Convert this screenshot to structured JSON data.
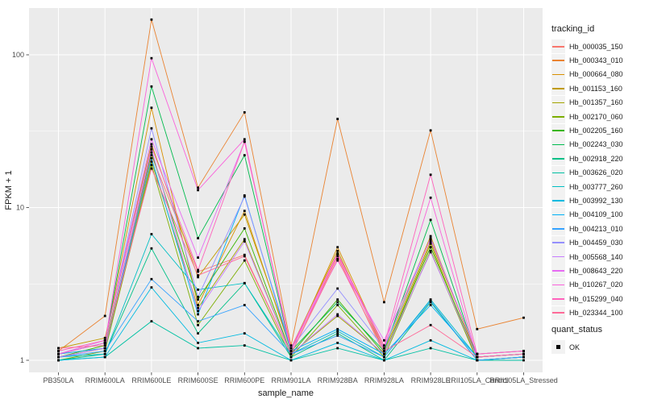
{
  "chart_data": {
    "type": "line",
    "title": "",
    "xlabel": "sample_name",
    "ylabel": "FPKM + 1",
    "yscale": "log10",
    "yticks": [
      "1",
      "10",
      "100"
    ],
    "ytick_values": [
      1,
      10,
      100
    ],
    "yminor_values": [
      3.162,
      31.62
    ],
    "ylim": [
      0.83,
      205
    ],
    "grid": "major-and-minor",
    "legend_position": "right",
    "point_shape": "small-black-square",
    "categories": [
      "PB350LA",
      "RRIM600LA",
      "RRIM600LE",
      "RRIM600SE",
      "RRIM600PE",
      "RRIM901LA",
      "RRIM928BA",
      "RRIM928LA",
      "RRIM928LE",
      "RRII105LA_Control",
      "RRII105LA_Stressed"
    ],
    "series": [
      {
        "name": "Hb_000035_150",
        "color": "#F8766D",
        "values": [
          1.1,
          1.2,
          22,
          3.8,
          4.9,
          1.1,
          4.8,
          1.1,
          5.5,
          1.05,
          1.1
        ]
      },
      {
        "name": "Hb_000343_010",
        "color": "#EA8331",
        "values": [
          1.15,
          1.95,
          170,
          13.5,
          42,
          1.25,
          38,
          2.4,
          32,
          1.6,
          1.9
        ]
      },
      {
        "name": "Hb_000664_080",
        "color": "#D89000",
        "values": [
          1.1,
          1.3,
          45,
          2.3,
          9.5,
          1.15,
          5.5,
          1.2,
          6.5,
          1.05,
          1.1
        ]
      },
      {
        "name": "Hb_001153_160",
        "color": "#C09B00",
        "values": [
          1.2,
          1.4,
          26,
          3.5,
          9.0,
          1.2,
          5.2,
          1.15,
          6.0,
          1.1,
          1.15
        ]
      },
      {
        "name": "Hb_001357_160",
        "color": "#A3A500",
        "values": [
          1.05,
          1.2,
          20,
          2.2,
          6.2,
          1.1,
          1.95,
          1.1,
          5.8,
          1.0,
          1.05
        ]
      },
      {
        "name": "Hb_002170_060",
        "color": "#7CAE00",
        "values": [
          1.0,
          1.15,
          19,
          1.7,
          4.5,
          1.05,
          2.3,
          1.05,
          5.2,
          1.0,
          1.05
        ]
      },
      {
        "name": "Hb_002205_160",
        "color": "#39B600",
        "values": [
          1.05,
          1.25,
          23,
          2.5,
          7.3,
          1.1,
          2.5,
          1.1,
          5.5,
          1.05,
          1.1
        ]
      },
      {
        "name": "Hb_002243_030",
        "color": "#00BB4E",
        "values": [
          1.1,
          1.3,
          62,
          6.3,
          22,
          1.15,
          2.4,
          1.15,
          8.3,
          1.05,
          1.1
        ]
      },
      {
        "name": "Hb_002918_220",
        "color": "#00C087",
        "values": [
          1.0,
          1.1,
          5.4,
          1.5,
          3.2,
          1.05,
          1.5,
          1.0,
          2.4,
          1.0,
          1.05
        ]
      },
      {
        "name": "Hb_003626_020",
        "color": "#00C1A3",
        "values": [
          1.0,
          1.05,
          1.8,
          1.2,
          1.25,
          1.0,
          1.2,
          1.0,
          1.2,
          1.0,
          1.0
        ]
      },
      {
        "name": "Hb_003777_260",
        "color": "#00BFC4",
        "values": [
          1.05,
          1.1,
          6.7,
          2.9,
          3.2,
          1.1,
          1.55,
          1.05,
          2.5,
          1.05,
          1.1
        ]
      },
      {
        "name": "Hb_003992_130",
        "color": "#00BAE0",
        "values": [
          1.0,
          1.05,
          3.0,
          1.3,
          1.5,
          1.0,
          1.3,
          1.0,
          1.35,
          1.0,
          1.05
        ]
      },
      {
        "name": "Hb_004109_100",
        "color": "#00B0F6",
        "values": [
          1.1,
          1.2,
          21,
          2.0,
          12,
          1.15,
          1.6,
          1.1,
          2.3,
          1.05,
          1.1
        ]
      },
      {
        "name": "Hb_004213_010",
        "color": "#35A2FF",
        "values": [
          1.05,
          1.15,
          3.4,
          1.8,
          2.3,
          1.1,
          1.45,
          1.05,
          2.45,
          1.0,
          1.05
        ]
      },
      {
        "name": "Hb_004459_030",
        "color": "#9590FF",
        "values": [
          1.1,
          1.3,
          33,
          2.6,
          11.8,
          1.2,
          2.95,
          1.2,
          6.3,
          1.1,
          1.15
        ]
      },
      {
        "name": "Hb_005568_140",
        "color": "#C77CFF",
        "values": [
          1.05,
          1.2,
          24,
          2.1,
          6.0,
          1.1,
          2.0,
          1.1,
          5.1,
          1.05,
          1.1
        ]
      },
      {
        "name": "Hb_008643_220",
        "color": "#E76BF3",
        "values": [
          1.1,
          1.35,
          28,
          4.7,
          27,
          1.2,
          4.5,
          1.35,
          6.2,
          1.1,
          1.15
        ]
      },
      {
        "name": "Hb_010267_020",
        "color": "#FA62DB",
        "values": [
          1.1,
          1.3,
          95,
          13.0,
          28,
          1.15,
          4.9,
          1.2,
          11.6,
          1.05,
          1.1
        ]
      },
      {
        "name": "Hb_015299_040",
        "color": "#FF62BC",
        "values": [
          1.15,
          1.35,
          25,
          3.9,
          27,
          1.2,
          5.0,
          1.25,
          16.4,
          1.1,
          1.15
        ]
      },
      {
        "name": "Hb_023344_100",
        "color": "#FF6A98",
        "values": [
          1.2,
          1.25,
          18,
          3.6,
          4.8,
          1.1,
          4.6,
          1.15,
          1.7,
          1.05,
          1.1
        ]
      }
    ]
  },
  "legend": {
    "tracking_title": "tracking_id",
    "quant_title": "quant_status",
    "quant_items": [
      {
        "label": "OK"
      }
    ]
  },
  "colors": {
    "panel_bg": "#EBEBEB",
    "grid": "#FFFFFF",
    "legend_key_bg": "#F2F2F2",
    "point": "#000000",
    "tick_text": "#4D4D4D",
    "title_text": "#1A1A1A",
    "tick_mark": "#333333",
    "page_bg": "#FFFFFF"
  }
}
